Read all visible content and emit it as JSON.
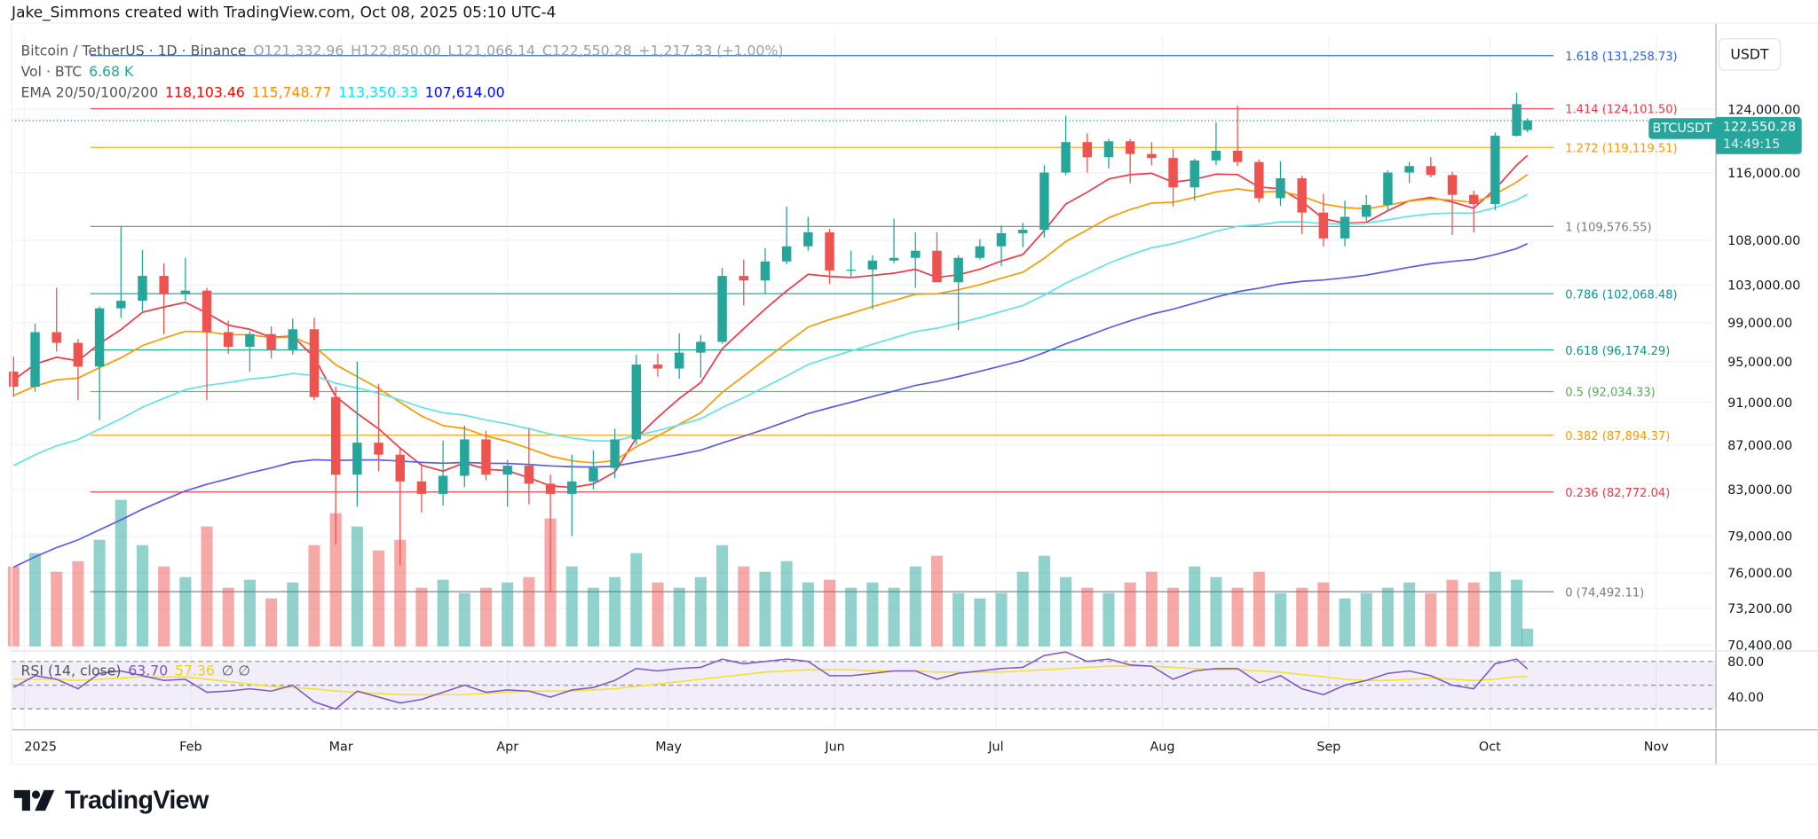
{
  "header": {
    "credit": "Jake_Simmons created with TradingView.com, Oct 08, 2025 05:10 UTC-4"
  },
  "legend": {
    "symbol": "Bitcoin / TetherUS · 1D · Binance",
    "open": "O121,332.96",
    "high": "H122,850.00",
    "low": "L121,066.14",
    "close": "C122,550.28",
    "change": "+1,217.33 (+1.00%)",
    "volume_label": "Vol · BTC",
    "volume_value": "6.68 K",
    "ema_label": "EMA 20/50/100/200",
    "ema_values": [
      "118,103.46",
      "115,748.77",
      "113,350.33",
      "107,614.00"
    ],
    "rsi_label": "RSI (14, close)",
    "rsi_value": "63.70",
    "rsi_ma_value": "57.36",
    "rsi_extra": "∅ ∅"
  },
  "price_axis": {
    "currency_button": "USDT",
    "ticks": [
      "124,000.00",
      "116,000.00",
      "108,000.00",
      "103,000.00",
      "99,000.00",
      "95,000.00",
      "91,000.00",
      "87,000.00",
      "83,000.00",
      "79,000.00",
      "76,000.00",
      "73,200.00",
      "70,400.00"
    ],
    "tick_values": [
      124000,
      116000,
      108000,
      103000,
      99000,
      95000,
      91000,
      87000,
      83000,
      79000,
      76000,
      73200,
      70400
    ],
    "last_price_symbol": "BTCUSDT",
    "last_price": "122,550.28",
    "countdown": "14:49:15",
    "rsi_ticks": [
      "80.00",
      "40.00"
    ]
  },
  "time_axis": {
    "labels": [
      "2025",
      "Feb",
      "Mar",
      "Apr",
      "May",
      "Jun",
      "Jul",
      "Aug",
      "Sep",
      "Oct",
      "Nov"
    ],
    "dates": [
      "2025-01-01",
      "2025-02-01",
      "2025-03-01",
      "2025-04-01",
      "2025-05-01",
      "2025-06-01",
      "2025-07-01",
      "2025-08-01",
      "2025-09-01",
      "2025-10-01",
      "2025-11-01"
    ]
  },
  "branding": {
    "logo_text": "TradingView"
  },
  "colors": {
    "up": "#26a69a",
    "down": "#ef5350",
    "ema20": "#f23645",
    "ema50": "#ff9800",
    "ema100": "#5fe3e8",
    "ema200": "#5b5bea",
    "rsi": "#7e57c2",
    "rsi_ma": "#f5e12a",
    "accent": "#26a69a"
  },
  "chart_data": {
    "type": "candlestick",
    "title": "Bitcoin / TetherUS · 1D · Binance",
    "yscale": "log",
    "ylim": [
      70400,
      131258.73
    ],
    "grid": true,
    "fib_levels": [
      {
        "level": "1.618",
        "price": 131258.73,
        "label": "1.618 (131,258.73)",
        "color": "#2962ff"
      },
      {
        "level": "1.414",
        "price": 124101.5,
        "label": "1.414 (124,101.50)",
        "color": "#f23645"
      },
      {
        "level": "1.272",
        "price": 119119.51,
        "label": "1.272 (119,119.51)",
        "color": "#ff9800"
      },
      {
        "level": "1",
        "price": 109576.55,
        "label": "1 (109,576.55)",
        "color": "#787b86"
      },
      {
        "level": "0.786",
        "price": 102068.48,
        "label": "0.786 (102,068.48)",
        "color": "#0097a7"
      },
      {
        "level": "0.618",
        "price": 96174.29,
        "label": "0.618 (96,174.29)",
        "color": "#089981"
      },
      {
        "level": "0.5",
        "price": 92034.33,
        "label": "0.5 (92,034.33)",
        "color": "#4caf50"
      },
      {
        "level": "0.382",
        "price": 87894.37,
        "label": "0.382 (87,894.37)",
        "color": "#ff9800"
      },
      {
        "level": "0.236",
        "price": 82772.04,
        "label": "0.236 (82,772.04)",
        "color": "#f23645"
      },
      {
        "level": "0",
        "price": 74492.11,
        "label": "0 (74,492.11)",
        "color": "#787b86"
      }
    ],
    "candles_columns": [
      "date",
      "open",
      "high",
      "low",
      "close"
    ],
    "candles": [
      [
        "2024-12-30",
        94000,
        95500,
        91500,
        92500
      ],
      [
        "2025-01-03",
        92500,
        98900,
        92000,
        98000
      ],
      [
        "2025-01-07",
        98000,
        102700,
        96000,
        96900
      ],
      [
        "2025-01-11",
        96900,
        97300,
        91200,
        94500
      ],
      [
        "2025-01-15",
        94500,
        100700,
        89300,
        100500
      ],
      [
        "2025-01-19",
        100500,
        109600,
        99500,
        101300
      ],
      [
        "2025-01-23",
        101300,
        106900,
        100200,
        104000
      ],
      [
        "2025-01-27",
        104000,
        105400,
        97800,
        102000
      ],
      [
        "2025-01-31",
        102000,
        106000,
        101300,
        102400
      ],
      [
        "2025-02-04",
        102400,
        102700,
        91200,
        98000
      ],
      [
        "2025-02-08",
        98000,
        99200,
        95800,
        96500
      ],
      [
        "2025-02-12",
        96500,
        98100,
        94000,
        97800
      ],
      [
        "2025-02-16",
        97800,
        98600,
        95300,
        96200
      ],
      [
        "2025-02-20",
        96200,
        99400,
        95700,
        98300
      ],
      [
        "2025-02-24",
        98300,
        99500,
        91200,
        91500
      ],
      [
        "2025-02-28",
        91500,
        92500,
        78300,
        84300
      ],
      [
        "2025-03-04",
        84300,
        95000,
        81500,
        87200
      ],
      [
        "2025-03-08",
        87200,
        92800,
        84600,
        86100
      ],
      [
        "2025-03-12",
        86100,
        86800,
        76600,
        83700
      ],
      [
        "2025-03-16",
        83700,
        85300,
        81000,
        82600
      ],
      [
        "2025-03-20",
        82600,
        87400,
        81600,
        84200
      ],
      [
        "2025-03-24",
        84200,
        88800,
        83200,
        87500
      ],
      [
        "2025-03-28",
        87500,
        88300,
        83800,
        84300
      ],
      [
        "2025-04-01",
        84300,
        85600,
        81500,
        85100
      ],
      [
        "2025-04-05",
        85100,
        88500,
        81700,
        83500
      ],
      [
        "2025-04-09",
        83500,
        84300,
        74500,
        82600
      ],
      [
        "2025-04-13",
        82600,
        86100,
        79000,
        83700
      ],
      [
        "2025-04-17",
        83700,
        86500,
        83000,
        84900
      ],
      [
        "2025-04-21",
        84900,
        88500,
        84000,
        87500
      ],
      [
        "2025-04-25",
        87500,
        95700,
        87000,
        94700
      ],
      [
        "2025-04-29",
        94700,
        95800,
        93500,
        94300
      ],
      [
        "2025-05-03",
        94300,
        97900,
        93300,
        95900
      ],
      [
        "2025-05-07",
        95900,
        97700,
        93400,
        97000
      ],
      [
        "2025-05-11",
        97000,
        104900,
        96800,
        104000
      ],
      [
        "2025-05-15",
        104000,
        105800,
        100800,
        103500
      ],
      [
        "2025-05-19",
        103500,
        107100,
        102100,
        105600
      ],
      [
        "2025-05-23",
        105600,
        111900,
        105300,
        107300
      ],
      [
        "2025-05-27",
        107300,
        110700,
        106800,
        108900
      ],
      [
        "2025-05-31",
        108900,
        109300,
        103100,
        104600
      ],
      [
        "2025-06-04",
        104600,
        106800,
        103900,
        104700
      ],
      [
        "2025-06-08",
        104700,
        106300,
        100400,
        105700
      ],
      [
        "2025-06-12",
        105700,
        110500,
        105400,
        106000
      ],
      [
        "2025-06-16",
        106000,
        108900,
        102700,
        106800
      ],
      [
        "2025-06-20",
        106800,
        108900,
        103600,
        103300
      ],
      [
        "2025-06-24",
        103300,
        106300,
        98200,
        106000
      ],
      [
        "2025-06-28",
        106000,
        108100,
        105800,
        107300
      ],
      [
        "2025-07-02",
        107300,
        109700,
        105100,
        108800
      ],
      [
        "2025-07-06",
        108800,
        110000,
        107200,
        109200
      ],
      [
        "2025-07-10",
        109200,
        116900,
        108300,
        116000
      ],
      [
        "2025-07-14",
        116000,
        123200,
        115700,
        119800
      ],
      [
        "2025-07-18",
        119800,
        120900,
        116000,
        117900
      ],
      [
        "2025-07-22",
        117900,
        120200,
        116500,
        119900
      ],
      [
        "2025-07-26",
        119900,
        120200,
        114700,
        118300
      ],
      [
        "2025-07-30",
        118300,
        119800,
        116900,
        117800
      ],
      [
        "2025-08-03",
        117800,
        118900,
        111900,
        114200
      ],
      [
        "2025-08-07",
        114200,
        117700,
        112600,
        117500
      ],
      [
        "2025-08-11",
        117500,
        122300,
        116900,
        118700
      ],
      [
        "2025-08-15",
        118700,
        124500,
        116800,
        117300
      ],
      [
        "2025-08-19",
        117300,
        117600,
        112400,
        112900
      ],
      [
        "2025-08-23",
        112900,
        117400,
        112000,
        115300
      ],
      [
        "2025-08-27",
        115300,
        115600,
        108700,
        111200
      ],
      [
        "2025-08-31",
        111200,
        113400,
        107300,
        108200
      ],
      [
        "2025-09-04",
        108200,
        112600,
        107300,
        110700
      ],
      [
        "2025-09-08",
        110700,
        113300,
        110200,
        112100
      ],
      [
        "2025-09-12",
        112100,
        116300,
        111400,
        116000
      ],
      [
        "2025-09-16",
        116000,
        117300,
        114700,
        116800
      ],
      [
        "2025-09-20",
        116800,
        117900,
        115400,
        115700
      ],
      [
        "2025-09-24",
        115700,
        116100,
        108600,
        113300
      ],
      [
        "2025-09-28",
        113300,
        113800,
        108900,
        112200
      ],
      [
        "2025-10-02",
        112200,
        121000,
        111500,
        120600
      ],
      [
        "2025-10-06",
        120600,
        126200,
        120500,
        124700
      ],
      [
        "2025-10-08",
        121332.96,
        122850,
        121066.14,
        122550.28
      ]
    ],
    "volume_k_btc": [
      30,
      35,
      28,
      32,
      40,
      55,
      38,
      30,
      26,
      45,
      22,
      25,
      18,
      24,
      38,
      50,
      45,
      36,
      40,
      22,
      25,
      20,
      22,
      24,
      26,
      48,
      30,
      22,
      26,
      35,
      24,
      22,
      26,
      38,
      30,
      28,
      32,
      24,
      25,
      22,
      24,
      22,
      30,
      34,
      20,
      18,
      20,
      28,
      34,
      26,
      22,
      20,
      24,
      28,
      22,
      30,
      26,
      22,
      28,
      20,
      22,
      24,
      18,
      20,
      22,
      24,
      20,
      25,
      24,
      28,
      25,
      6.68
    ],
    "ema": [
      {
        "name": "EMA 20",
        "period": 20,
        "first": 93500,
        "last": 118103.46
      },
      {
        "name": "EMA 50",
        "period": 50,
        "first": 91500,
        "last": 115748.77
      },
      {
        "name": "EMA 100",
        "period": 100,
        "first": 84500,
        "last": 113350.33
      },
      {
        "name": "EMA 200",
        "period": 200,
        "first": 75800,
        "last": 107614.0
      }
    ],
    "rsi": [
      48,
      58,
      55,
      47,
      60,
      62,
      58,
      54,
      55,
      44,
      45,
      47,
      45,
      50,
      36,
      30,
      45,
      40,
      35,
      38,
      44,
      50,
      44,
      46,
      45,
      40,
      46,
      48,
      54,
      64,
      62,
      64,
      65,
      72,
      68,
      70,
      72,
      70,
      58,
      58,
      60,
      62,
      62,
      55,
      60,
      62,
      64,
      65,
      75,
      78,
      70,
      72,
      67,
      66,
      55,
      62,
      64,
      64,
      52,
      58,
      47,
      42,
      50,
      54,
      60,
      62,
      58,
      50,
      47,
      68,
      72,
      63.7
    ],
    "rsi_ma": [
      55,
      55,
      55,
      54,
      55,
      56,
      57,
      57,
      57,
      55,
      53,
      51,
      49,
      48,
      47,
      45,
      44,
      43,
      42,
      42,
      42,
      42,
      43,
      44,
      45,
      45,
      45,
      46,
      47,
      49,
      51,
      53,
      55,
      57,
      59,
      61,
      62,
      63,
      63,
      63,
      62,
      62,
      62,
      61,
      61,
      61,
      61,
      62,
      63,
      64,
      65,
      66,
      66,
      66,
      65,
      64,
      63,
      63,
      62,
      61,
      59,
      57,
      55,
      54,
      54,
      55,
      56,
      55,
      54,
      55,
      57,
      57.36
    ],
    "rsi_levels": [
      70,
      50,
      30
    ]
  }
}
